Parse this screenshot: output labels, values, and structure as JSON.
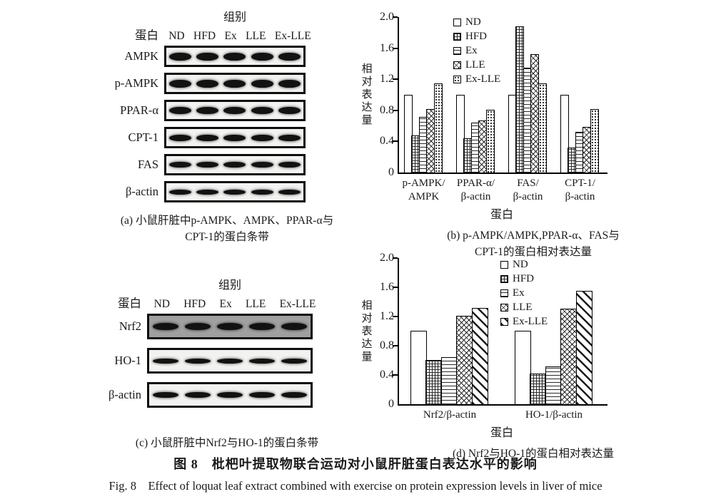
{
  "figure": {
    "caption_cn": "图 8　枇杷叶提取物联合运动对小鼠肝脏蛋白表达水平的影响",
    "caption_en": "Fig. 8　Effect of loquat leaf extract combined with exercise on protein expression levels in liver of mice"
  },
  "panel_a": {
    "group_header": "组别",
    "protein_header": "蛋白",
    "lanes": [
      "ND",
      "HFD",
      "Ex",
      "LLE",
      "Ex-LLE"
    ],
    "proteins": [
      "AMPK",
      "p-AMPK",
      "PPAR-α",
      "CPT-1",
      "FAS",
      "β-actin"
    ],
    "caption_lines": [
      "(a) 小鼠肝脏中p-AMPK、AMPK、PPAR-α与",
      "CPT-1的蛋白条带"
    ]
  },
  "panel_c": {
    "group_header": "组别",
    "protein_header": "蛋白",
    "lanes": [
      "ND",
      "HFD",
      "Ex",
      "LLE",
      "Ex-LLE"
    ],
    "proteins": [
      "Nrf2",
      "HO-1",
      "β-actin"
    ],
    "caption_lines": [
      "(c) 小鼠肝脏中Nrf2与HO-1的蛋白条带"
    ]
  },
  "chart_data": [
    {
      "id": "chart-b",
      "type": "bar",
      "panel": "(b)",
      "ylabel": "相对表达量",
      "xlabel": "蛋白",
      "ylim": [
        0,
        2.0
      ],
      "yticks": [
        "0",
        "0.4",
        "0.8",
        "1.2",
        "1.6",
        "2.0"
      ],
      "ytick_values": [
        0,
        0.4,
        0.8,
        1.2,
        1.6,
        2.0
      ],
      "grid": false,
      "legend_position": "upper-center-inside",
      "categories": [
        [
          "p-AMPK/",
          "AMPK"
        ],
        [
          "PPAR-α/",
          "β-actin"
        ],
        [
          "FAS/",
          "β-actin"
        ],
        [
          "CPT-1/",
          "β-actin"
        ]
      ],
      "series": [
        {
          "name": "ND",
          "pattern": "plain",
          "values": [
            1.0,
            1.0,
            1.0,
            1.0
          ]
        },
        {
          "name": "HFD",
          "pattern": "grid",
          "values": [
            0.48,
            0.44,
            1.88,
            0.32
          ]
        },
        {
          "name": "Ex",
          "pattern": "hlines",
          "values": [
            0.72,
            0.64,
            1.35,
            0.52
          ]
        },
        {
          "name": "LLE",
          "pattern": "crosshatch",
          "values": [
            0.82,
            0.67,
            1.52,
            0.59
          ]
        },
        {
          "name": "Ex-LLE",
          "pattern": "dots",
          "values": [
            1.15,
            0.81,
            1.15,
            0.82
          ]
        }
      ],
      "caption_lines": [
        "(b) p-AMPK/AMPK,PPAR-α、FAS与",
        "CPT-1的蛋白相对表达量"
      ]
    },
    {
      "id": "chart-d",
      "type": "bar",
      "panel": "(d)",
      "ylabel": "相对表达量",
      "xlabel": "蛋白",
      "ylim": [
        0,
        2.0
      ],
      "yticks": [
        "0",
        "0.4",
        "0.8",
        "1.2",
        "1.6",
        "2.0"
      ],
      "ytick_values": [
        0,
        0.4,
        0.8,
        1.2,
        1.6,
        2.0
      ],
      "grid": false,
      "legend_position": "upper-center-inside",
      "categories": [
        [
          "Nrf2/β-actin"
        ],
        [
          "HO-1/β-actin"
        ]
      ],
      "series": [
        {
          "name": "ND",
          "pattern": "plain",
          "values": [
            1.0,
            1.0
          ]
        },
        {
          "name": "HFD",
          "pattern": "grid",
          "values": [
            0.6,
            0.42
          ]
        },
        {
          "name": "Ex",
          "pattern": "hlines",
          "values": [
            0.64,
            0.52
          ]
        },
        {
          "name": "LLE",
          "pattern": "crosshatch",
          "values": [
            1.21,
            1.31
          ]
        },
        {
          "name": "Ex-LLE",
          "pattern": "diag",
          "values": [
            1.32,
            1.55
          ]
        }
      ],
      "caption_lines": [
        "(d) Nrf2与HO-1的蛋白相对表达量"
      ]
    }
  ],
  "colors": {
    "ink": "#1a1a1a",
    "background": "#ffffff",
    "blot_background": "#f2f2f0",
    "nrf2_blot_background": "#a0a0a0",
    "band": "#121212"
  }
}
